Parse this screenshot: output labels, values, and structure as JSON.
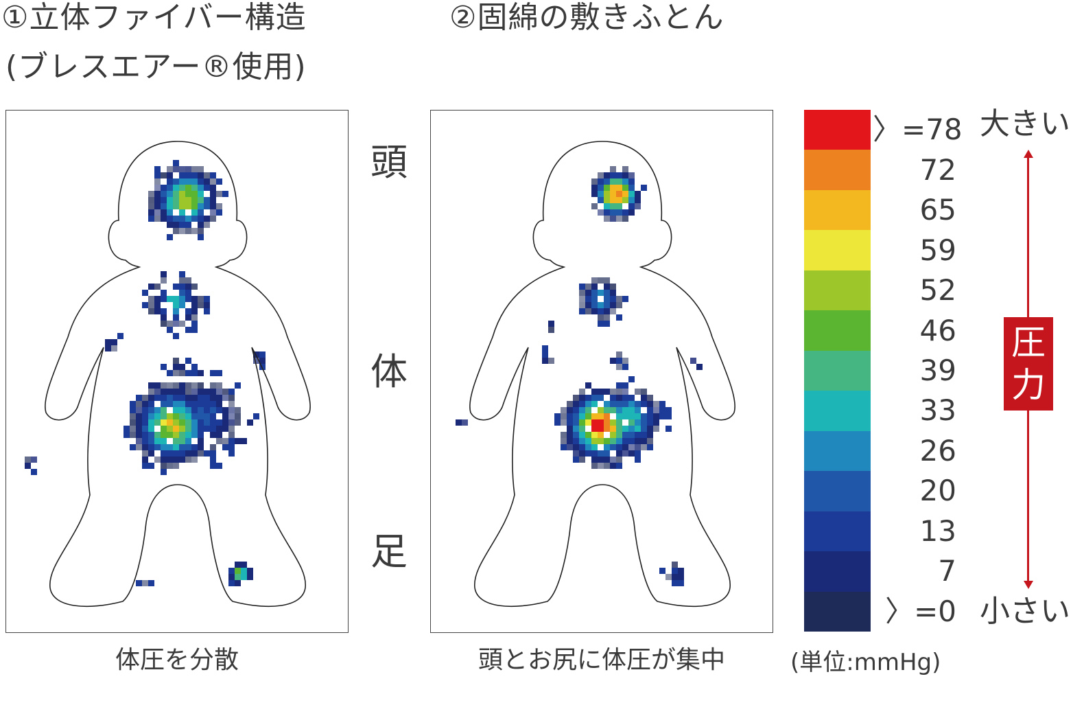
{
  "titles": {
    "panel1_line1": "①立体ファイバー構造",
    "panel1_line2": "(ブレスエアー®使用)",
    "panel2": "②固綿の敷きふとん"
  },
  "region_labels": {
    "head": "頭",
    "body": "体",
    "feet": "足"
  },
  "captions": {
    "panel1": "体圧を分散",
    "panel2": "頭とお尻に体圧が集中"
  },
  "legend": {
    "unit": "(単位:mmHg)",
    "high_label": "大きい",
    "low_label": "小さい",
    "axis_label": "圧力",
    "axis_color": "#c4161c",
    "bands": [
      {
        "label": "〉=78",
        "color": "#e3161b"
      },
      {
        "label": "72",
        "color": "#ec8220"
      },
      {
        "label": "65",
        "color": "#f3b81f"
      },
      {
        "label": "59",
        "color": "#ede73a"
      },
      {
        "label": "52",
        "color": "#9dc62a"
      },
      {
        "label": "46",
        "color": "#5cb531"
      },
      {
        "label": "39",
        "color": "#45b681"
      },
      {
        "label": "33",
        "color": "#1db5b5"
      },
      {
        "label": "26",
        "color": "#2088bd"
      },
      {
        "label": "20",
        "color": "#2157a8"
      },
      {
        "label": "13",
        "color": "#1c3b98"
      },
      {
        "label": "7",
        "color": "#1b2a78"
      },
      {
        "label": "〉=0",
        "color": "#1e2a58"
      }
    ]
  }
}
